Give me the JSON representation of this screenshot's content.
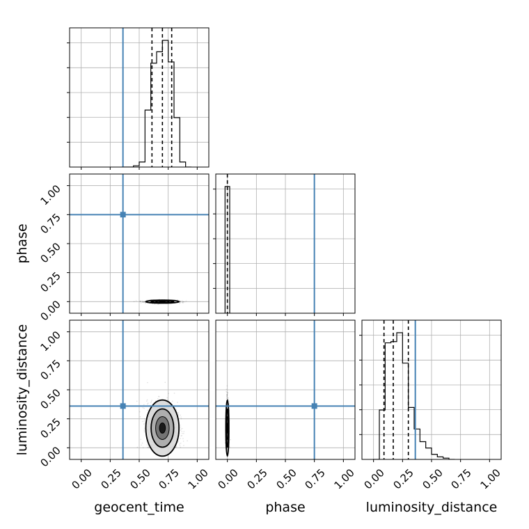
{
  "chart_data": {
    "type": "corner",
    "parameters": [
      "geocent_time",
      "phase",
      "luminosity_distance"
    ],
    "axis_range": [
      -0.1,
      1.1
    ],
    "ticks": [
      0.0,
      0.25,
      0.5,
      0.75,
      1.0
    ],
    "tick_labels": [
      "0.00",
      "0.25",
      "0.50",
      "0.75",
      "1.00"
    ],
    "grid": true,
    "truths": {
      "geocent_time": 0.36,
      "phase": 0.75,
      "luminosity_distance": 0.36,
      "color": "#4682b4"
    },
    "quantiles": {
      "geocent_time": [
        0.61,
        0.7,
        0.78
      ],
      "phase": [
        0.0
      ],
      "luminosity_distance": [
        0.09,
        0.17,
        0.3
      ]
    },
    "histograms": {
      "geocent_time": {
        "bin_edges": [
          0.35,
          0.4,
          0.45,
          0.5,
          0.55,
          0.6,
          0.65,
          0.7,
          0.75,
          0.8,
          0.85,
          0.9,
          0.95
        ],
        "values": [
          0.0,
          0.0,
          0.01,
          0.04,
          0.45,
          0.82,
          0.91,
          1.0,
          0.83,
          0.39,
          0.04,
          0.0
        ]
      },
      "phase": {
        "bin_edges": [
          -0.02,
          0.0,
          0.02
        ],
        "values": [
          1.0,
          1.0
        ]
      },
      "luminosity_distance": {
        "bin_edges": [
          0.0,
          0.05,
          0.1,
          0.15,
          0.2,
          0.25,
          0.3,
          0.35,
          0.4,
          0.45,
          0.5,
          0.55,
          0.6,
          0.65,
          0.7
        ],
        "values": [
          0.0,
          0.39,
          0.92,
          0.93,
          1.0,
          0.76,
          0.41,
          0.24,
          0.14,
          0.09,
          0.04,
          0.02,
          0.01,
          0.0
        ]
      }
    },
    "joint_2d": {
      "geocent_time_vs_phase": {
        "center": [
          0.7,
          0.0
        ],
        "spread": [
          0.065,
          0.006
        ]
      },
      "geocent_time_vs_luminosity_distance": {
        "center": [
          0.7,
          0.17
        ],
        "spread": [
          0.065,
          0.11
        ]
      },
      "phase_vs_luminosity_distance": {
        "center": [
          0.0,
          0.17
        ],
        "spread": [
          0.006,
          0.11
        ]
      }
    }
  }
}
